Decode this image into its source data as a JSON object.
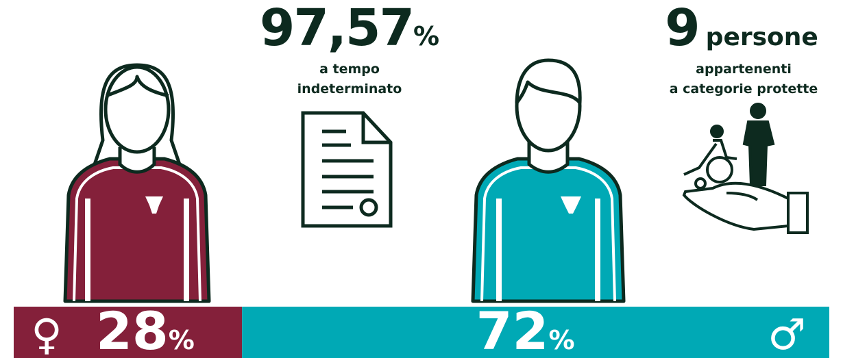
{
  "stats": [
    {
      "value": "97,57",
      "unit": "%",
      "lines": [
        "a tempo",
        "indeterminato"
      ]
    },
    {
      "value": "9",
      "unit": "persone",
      "lines": [
        "appartenenti",
        "a categorie protette"
      ]
    }
  ],
  "gender_split": {
    "segments": [
      {
        "symbol": "♀",
        "value": 28,
        "unit": "%",
        "color": "#84203a"
      },
      {
        "symbol": "♂",
        "value": 72,
        "unit": "%",
        "color": "#00a9b5"
      }
    ]
  }
}
